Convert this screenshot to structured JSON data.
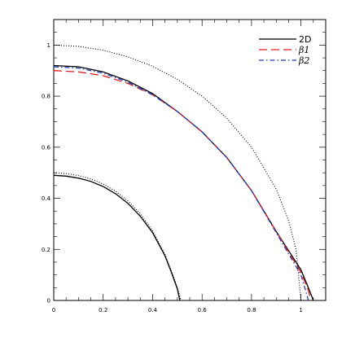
{
  "chart_data": {
    "type": "line",
    "title": "",
    "xlabel": "",
    "ylabel": "",
    "xlim": [
      0,
      1.1
    ],
    "ylim": [
      0,
      1.1
    ],
    "grid": false,
    "legend_position": "top-right",
    "x_ticks": [
      {
        "value": 0,
        "label": "0"
      },
      {
        "value": 0.2,
        "label": "0.2"
      },
      {
        "value": 0.4,
        "label": "0.4"
      },
      {
        "value": 0.6,
        "label": "0.6"
      },
      {
        "value": 0.8,
        "label": "0.8"
      },
      {
        "value": 1,
        "label": "1"
      }
    ],
    "y_ticks": [
      {
        "value": 0,
        "label": "0"
      },
      {
        "value": 0.2,
        "label": "0.2"
      },
      {
        "value": 0.4,
        "label": "0.4"
      },
      {
        "value": 0.6,
        "label": "0.6"
      },
      {
        "value": 0.8,
        "label": "0.8"
      },
      {
        "value": 1,
        "label": "1"
      }
    ],
    "series": [
      {
        "name": "2D",
        "color": "#000000",
        "style": "solid",
        "x": [
          0,
          0.1,
          0.2,
          0.3,
          0.4,
          0.5,
          0.6,
          0.7,
          0.8,
          0.9,
          1.0,
          1.03,
          1.05
        ],
        "y": [
          0.92,
          0.915,
          0.895,
          0.86,
          0.81,
          0.74,
          0.66,
          0.56,
          0.43,
          0.27,
          0.12,
          0.05,
          0
        ]
      },
      {
        "name": "β1",
        "color": "#e41a1c",
        "style": "dashed",
        "x": [
          0,
          0.1,
          0.2,
          0.3,
          0.4,
          0.5,
          0.6,
          0.7,
          0.8,
          0.9,
          1.0,
          1.03,
          1.04
        ],
        "y": [
          0.9,
          0.895,
          0.88,
          0.85,
          0.805,
          0.74,
          0.66,
          0.56,
          0.43,
          0.27,
          0.11,
          0.04,
          0
        ]
      },
      {
        "name": "β2",
        "color": "#1f3fbf",
        "style": "dashdot",
        "x": [
          0,
          0.1,
          0.2,
          0.3,
          0.4,
          0.5,
          0.6,
          0.7,
          0.8,
          0.9,
          1.0,
          1.02,
          1.03
        ],
        "y": [
          0.915,
          0.91,
          0.89,
          0.855,
          0.805,
          0.74,
          0.66,
          0.56,
          0.43,
          0.265,
          0.1,
          0.035,
          0
        ]
      },
      {
        "name": "",
        "color": "#000000",
        "style": "dotted",
        "x": [
          0,
          0.1,
          0.2,
          0.3,
          0.4,
          0.5,
          0.6,
          0.7,
          0.8,
          0.9,
          0.95,
          0.98,
          1.0
        ],
        "y": [
          1.0,
          0.995,
          0.98,
          0.954,
          0.917,
          0.866,
          0.8,
          0.714,
          0.6,
          0.436,
          0.312,
          0.199,
          0
        ]
      },
      {
        "name": "",
        "color": "#000000",
        "style": "solid",
        "x": [
          0,
          0.05,
          0.1,
          0.15,
          0.2,
          0.25,
          0.3,
          0.35,
          0.4,
          0.45,
          0.48,
          0.5,
          0.51
        ],
        "y": [
          0.49,
          0.487,
          0.479,
          0.466,
          0.446,
          0.418,
          0.38,
          0.33,
          0.265,
          0.175,
          0.1,
          0.045,
          0
        ]
      },
      {
        "name": "",
        "color": "#000000",
        "style": "dotted",
        "x": [
          0,
          0.05,
          0.1,
          0.15,
          0.2,
          0.25,
          0.3,
          0.35,
          0.4,
          0.45,
          0.48,
          0.5,
          0.515
        ],
        "y": [
          0.5,
          0.497,
          0.489,
          0.476,
          0.456,
          0.428,
          0.39,
          0.34,
          0.272,
          0.18,
          0.105,
          0.05,
          0
        ]
      }
    ]
  }
}
